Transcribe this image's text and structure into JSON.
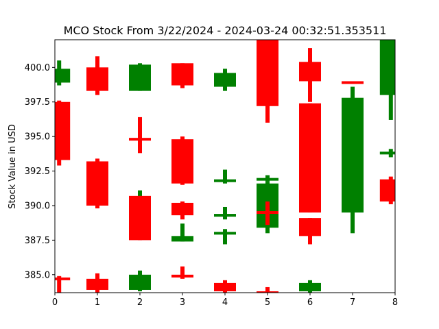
{
  "chart_data": {
    "type": "candlestick",
    "title": "MCO Stock From 3/22/2024 - 2024-03-24 00:32:51.353511",
    "xlabel": "",
    "ylabel": "Stock Value in USD",
    "xlim": [
      0,
      8
    ],
    "ylim": [
      383.7,
      402.0
    ],
    "x_ticks": [
      "0",
      "1",
      "2",
      "3",
      "4",
      "5",
      "6",
      "7",
      "8"
    ],
    "y_ticks": [
      385.0,
      387.5,
      390.0,
      392.5,
      395.0,
      397.5,
      400.0
    ],
    "y_tick_labels": [
      "385.0",
      "387.5",
      "390.0",
      "392.5",
      "395.0",
      "397.5",
      "400.0"
    ],
    "grid": false,
    "colors": {
      "up": "#008000",
      "down": "#ff0000"
    },
    "candles": [
      {
        "x": 0.1,
        "open": 398.9,
        "close": 399.9,
        "high": 400.5,
        "low": 398.7
      },
      {
        "x": 0.1,
        "open": 397.5,
        "close": 393.3,
        "high": 397.6,
        "low": 392.9
      },
      {
        "x": 0.1,
        "open": 384.8,
        "close": 384.7,
        "high": 384.9,
        "low": 383.7
      },
      {
        "x": 1.0,
        "open": 400.0,
        "close": 398.3,
        "high": 400.8,
        "low": 398.0
      },
      {
        "x": 1.0,
        "open": 393.2,
        "close": 390.0,
        "high": 393.4,
        "low": 389.8
      },
      {
        "x": 1.0,
        "open": 384.7,
        "close": 383.9,
        "high": 385.1,
        "low": 383.7
      },
      {
        "x": 2.0,
        "open": 398.3,
        "close": 400.2,
        "high": 400.3,
        "low": 398.3
      },
      {
        "x": 2.0,
        "open": 394.9,
        "close": 394.8,
        "high": 396.4,
        "low": 393.8
      },
      {
        "x": 2.0,
        "open": 390.0,
        "close": 390.3,
        "high": 391.1,
        "low": 389.7
      },
      {
        "x": 2.0,
        "open": 390.7,
        "close": 387.5,
        "high": 390.7,
        "low": 387.5
      },
      {
        "x": 2.0,
        "open": 383.9,
        "close": 385.0,
        "high": 385.3,
        "low": 383.8
      },
      {
        "x": 3.0,
        "open": 400.3,
        "close": 398.7,
        "high": 400.3,
        "low": 398.5
      },
      {
        "x": 3.0,
        "open": 394.8,
        "close": 391.6,
        "high": 395.0,
        "low": 391.5
      },
      {
        "x": 3.0,
        "open": 390.2,
        "close": 389.3,
        "high": 390.3,
        "low": 389.0
      },
      {
        "x": 3.0,
        "open": 387.4,
        "close": 387.8,
        "high": 388.7,
        "low": 387.4
      },
      {
        "x": 3.0,
        "open": 385.0,
        "close": 384.9,
        "high": 385.6,
        "low": 384.7
      },
      {
        "x": 4.0,
        "open": 398.6,
        "close": 399.6,
        "high": 399.9,
        "low": 398.3
      },
      {
        "x": 4.0,
        "open": 391.7,
        "close": 391.9,
        "high": 392.6,
        "low": 391.6
      },
      {
        "x": 4.0,
        "open": 389.2,
        "close": 389.4,
        "high": 389.9,
        "low": 389.0
      },
      {
        "x": 4.0,
        "open": 388.1,
        "close": 388.1,
        "high": 388.3,
        "low": 387.2
      },
      {
        "x": 4.0,
        "open": 384.4,
        "close": 383.8,
        "high": 384.6,
        "low": 383.7
      },
      {
        "x": 5.0,
        "open": 402.0,
        "close": 397.2,
        "high": 402.0,
        "low": 396.0
      },
      {
        "x": 5.0,
        "open": 391.9,
        "close": 392.0,
        "high": 392.2,
        "low": 391.7
      },
      {
        "x": 5.0,
        "open": 388.4,
        "close": 391.6,
        "high": 391.7,
        "low": 388.0
      },
      {
        "x": 5.0,
        "open": 389.6,
        "close": 389.4,
        "high": 390.3,
        "low": 388.6
      },
      {
        "x": 5.0,
        "open": 383.8,
        "close": 383.7,
        "high": 384.1,
        "low": 383.7
      },
      {
        "x": 6.0,
        "open": 400.4,
        "close": 399.0,
        "high": 401.4,
        "low": 397.5
      },
      {
        "x": 6.0,
        "open": 397.4,
        "close": 389.5,
        "high": 397.4,
        "low": 389.5
      },
      {
        "x": 6.0,
        "open": 389.1,
        "close": 387.8,
        "high": 389.1,
        "low": 387.2
      },
      {
        "x": 6.0,
        "open": 383.8,
        "close": 384.4,
        "high": 384.6,
        "low": 383.7
      },
      {
        "x": 7.0,
        "open": 399.0,
        "close": 398.9,
        "high": 399.0,
        "low": 398.8
      },
      {
        "x": 7.0,
        "open": 389.5,
        "close": 397.8,
        "high": 398.6,
        "low": 388.0
      },
      {
        "x": 7.9,
        "open": 398.0,
        "close": 402.0,
        "high": 402.0,
        "low": 396.2
      },
      {
        "x": 7.9,
        "open": 393.8,
        "close": 393.9,
        "high": 394.1,
        "low": 393.5
      },
      {
        "x": 7.9,
        "open": 391.9,
        "close": 390.3,
        "high": 392.1,
        "low": 390.1
      }
    ]
  }
}
